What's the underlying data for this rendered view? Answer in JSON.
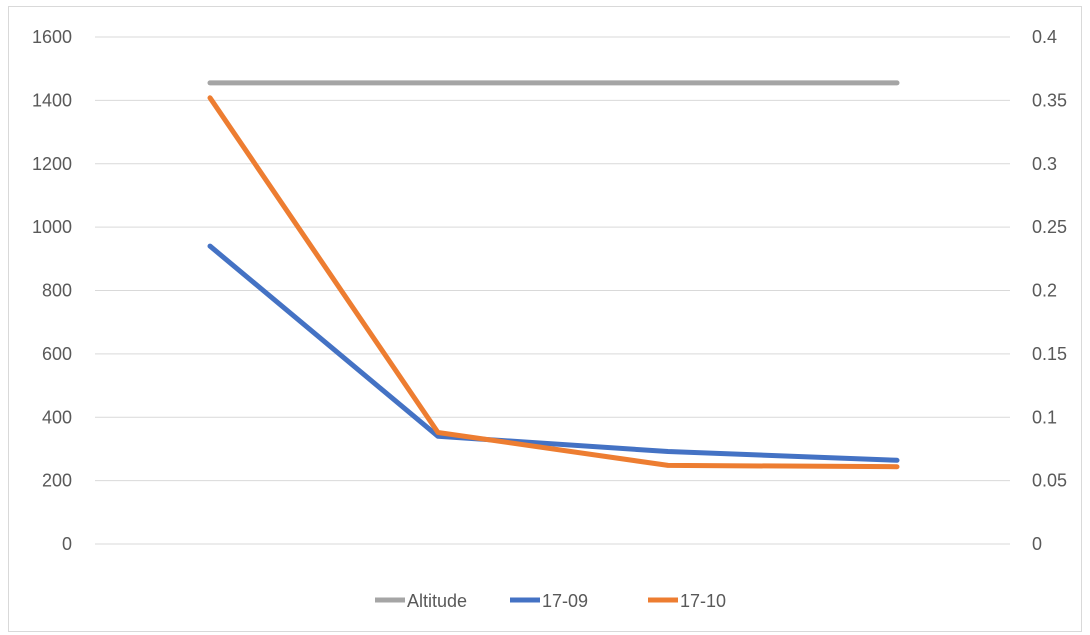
{
  "chart_data": {
    "type": "line",
    "title": "",
    "x": [
      1,
      2,
      3,
      4
    ],
    "y_left": {
      "ylim": [
        0,
        1600
      ],
      "ticks": [
        0,
        200,
        400,
        600,
        800,
        1000,
        1200,
        1400,
        1600
      ],
      "tick_labels": [
        "0",
        "200",
        "400",
        "600",
        "800",
        "1000",
        "1200",
        "1400",
        "1600"
      ]
    },
    "y_right": {
      "ylim": [
        0,
        0.4
      ],
      "ticks": [
        0,
        0.05,
        0.1,
        0.15,
        0.2,
        0.25,
        0.3,
        0.35,
        0.4
      ],
      "tick_labels": [
        "0",
        "0.05",
        "0.1",
        "0.15",
        "0.2",
        "0.25",
        "0.3",
        "0.35",
        "0.4"
      ]
    },
    "grid": true,
    "legend_position": "bottom",
    "series": [
      {
        "name": "Altitude",
        "axis": "left",
        "color": "#a5a5a5",
        "values": [
          1455,
          1455,
          1455,
          1455
        ]
      },
      {
        "name": "17-09",
        "axis": "right",
        "color": "#4472c4",
        "values": [
          0.235,
          0.085,
          0.073,
          0.066
        ]
      },
      {
        "name": "17-10",
        "axis": "right",
        "color": "#ed7d31",
        "values": [
          0.352,
          0.088,
          0.062,
          0.061
        ]
      }
    ]
  }
}
